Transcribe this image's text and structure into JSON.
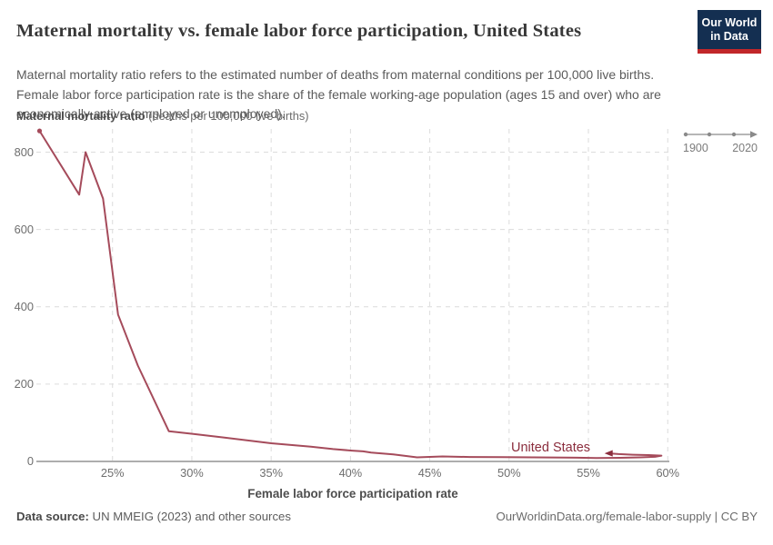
{
  "header": {
    "title": "Maternal mortality vs. female labor force participation, United States",
    "subtitle": "Maternal mortality ratio refers to the estimated number of deaths from maternal conditions per 100,000 live births. Female labor force participation rate is the share of the female working-age population (ages 15 and over) who are economically active (employed or unemployed).",
    "logo": {
      "line1": "Our World",
      "line2": "in Data"
    }
  },
  "y_axis_title": {
    "bold": "Maternal mortality ratio",
    "rest": " (deaths per 100,000 live births)"
  },
  "timeline": {
    "start": "1900",
    "end": "2020"
  },
  "chart_data": {
    "type": "line",
    "title": "Maternal mortality vs. female labor force participation, United States",
    "xlabel": "Female labor force participation rate",
    "ylabel": "Maternal mortality ratio (deaths per 100,000 live births)",
    "xlim": [
      20.2,
      60.1
    ],
    "ylim": [
      0,
      860
    ],
    "grid": "dashed",
    "x_ticks": [
      {
        "value": 25,
        "label": "25%"
      },
      {
        "value": 30,
        "label": "30%"
      },
      {
        "value": 35,
        "label": "35%"
      },
      {
        "value": 40,
        "label": "40%"
      },
      {
        "value": 45,
        "label": "45%"
      },
      {
        "value": 50,
        "label": "50%"
      },
      {
        "value": 55,
        "label": "55%"
      },
      {
        "value": 60,
        "label": "60%"
      }
    ],
    "y_ticks": [
      0,
      200,
      400,
      600,
      800
    ],
    "series": [
      {
        "name": "United States",
        "color": "#a54b5b",
        "start_marker": "dot",
        "end_marker": "arrow-left",
        "points": [
          [
            20.4,
            855
          ],
          [
            22.9,
            690
          ],
          [
            23.3,
            800
          ],
          [
            24.4,
            680
          ],
          [
            25.35,
            380
          ],
          [
            26.6,
            248
          ],
          [
            28.55,
            78
          ],
          [
            30.1,
            71
          ],
          [
            32.0,
            62
          ],
          [
            35.0,
            47
          ],
          [
            37.5,
            38
          ],
          [
            38.9,
            32
          ],
          [
            40.1,
            28
          ],
          [
            40.8,
            26
          ],
          [
            41.3,
            23
          ],
          [
            42.7,
            18
          ],
          [
            44.2,
            10.5
          ],
          [
            45.8,
            13
          ],
          [
            47.5,
            11.5
          ],
          [
            49.5,
            11
          ],
          [
            51.5,
            10.5
          ],
          [
            53.5,
            10
          ],
          [
            55.5,
            9
          ],
          [
            57.0,
            9.5
          ],
          [
            58.3,
            10.5
          ],
          [
            59.2,
            12
          ],
          [
            59.6,
            15
          ],
          [
            58.8,
            16.5
          ],
          [
            57.8,
            17.5
          ],
          [
            56.9,
            19
          ],
          [
            56.3,
            21
          ]
        ]
      }
    ],
    "colors": {
      "line": "#a54b5b",
      "series_label": "#8b2d3d",
      "grid": "#dcdcdc",
      "axis": "#a3a3a3",
      "tick_text": "#6e6e6e"
    },
    "legend_position": "inline-label"
  },
  "footer": {
    "source_bold": "Data source:",
    "source_rest": " UN MMEIG (2023) and other sources",
    "right": "OurWorldinData.org/female-labor-supply | CC BY"
  },
  "brand": {
    "navy": "#142f51",
    "red": "#c1272a"
  }
}
